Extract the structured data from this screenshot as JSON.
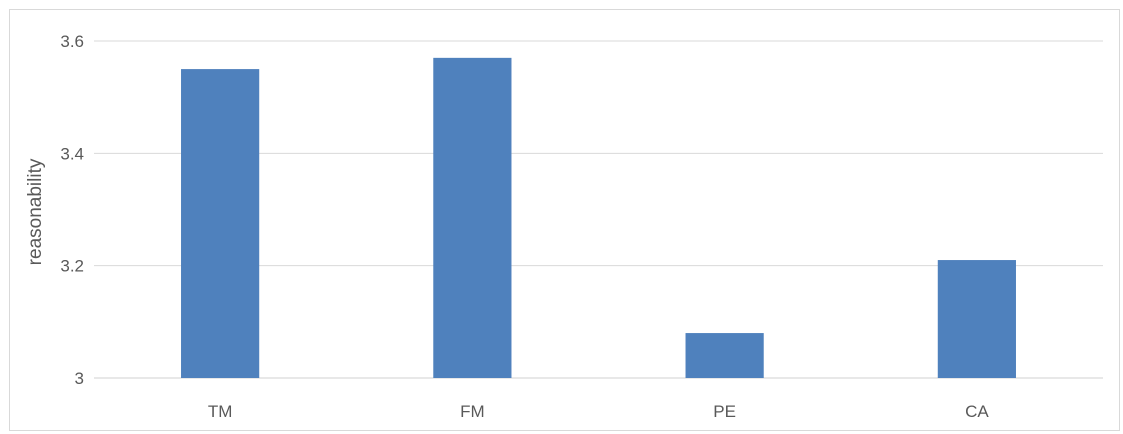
{
  "chart_data": {
    "type": "bar",
    "title": "",
    "xlabel": "",
    "ylabel": "reasonability",
    "categories": [
      "TM",
      "FM",
      "PE",
      "CA"
    ],
    "values": [
      3.55,
      3.57,
      3.08,
      3.21
    ],
    "ylim": [
      3,
      3.6
    ],
    "yticks": [
      3,
      3.2,
      3.4,
      3.6
    ],
    "ytick_labels": [
      "3",
      "3.2",
      "3.4",
      "3.6"
    ],
    "grid": true,
    "legend": "none",
    "bar_color": "#4f81bd",
    "grid_color": "#d9d9d9",
    "text_color": "#595959"
  }
}
